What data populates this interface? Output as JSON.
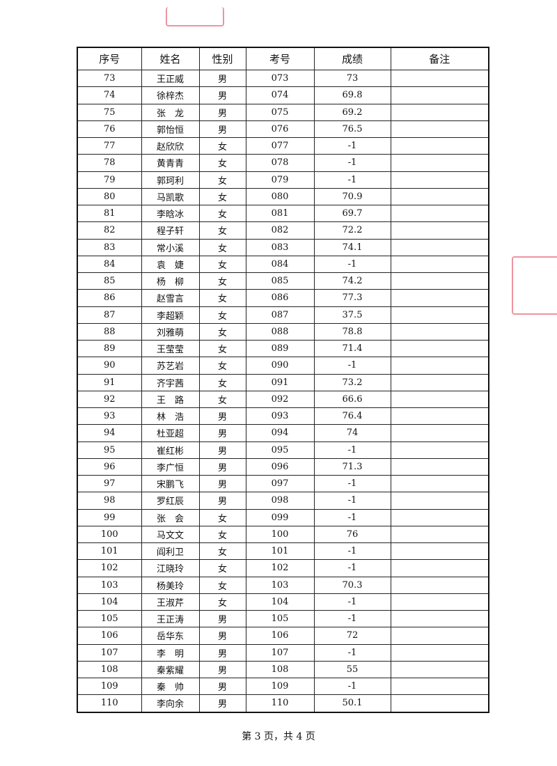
{
  "table": {
    "header": [
      "序号",
      "姓名",
      "性别",
      "考号",
      "成绩",
      "备注"
    ],
    "rows": [
      [
        "73",
        "王正威",
        "男",
        "073",
        "73"
      ],
      [
        "74",
        "徐梓杰",
        "男",
        "074",
        "69.8"
      ],
      [
        "75",
        "张　龙",
        "男",
        "075",
        "69.2"
      ],
      [
        "76",
        "郭怡恒",
        "男",
        "076",
        "76.5"
      ],
      [
        "77",
        "赵欣欣",
        "女",
        "077",
        "-1"
      ],
      [
        "78",
        "黄青青",
        "女",
        "078",
        "-1"
      ],
      [
        "79",
        "郭珂利",
        "女",
        "079",
        "-1"
      ],
      [
        "80",
        "马凯歌",
        "女",
        "080",
        "70.9"
      ],
      [
        "81",
        "李晗冰",
        "女",
        "081",
        "69.7"
      ],
      [
        "82",
        "程子轩",
        "女",
        "082",
        "72.2"
      ],
      [
        "83",
        "常小溪",
        "女",
        "083",
        "74.1"
      ],
      [
        "84",
        "袁　婕",
        "女",
        "084",
        "-1"
      ],
      [
        "85",
        "杨　柳",
        "女",
        "085",
        "74.2"
      ],
      [
        "86",
        "赵雪言",
        "女",
        "086",
        "77.3"
      ],
      [
        "87",
        "李超颖",
        "女",
        "087",
        "37.5"
      ],
      [
        "88",
        "刘雅萌",
        "女",
        "088",
        "78.8"
      ],
      [
        "89",
        "王莹莹",
        "女",
        "089",
        "71.4"
      ],
      [
        "90",
        "苏艺岩",
        "女",
        "090",
        "-1"
      ],
      [
        "91",
        "齐宇茜",
        "女",
        "091",
        "73.2"
      ],
      [
        "92",
        "王　路",
        "女",
        "092",
        "66.6"
      ],
      [
        "93",
        "林　浩",
        "男",
        "093",
        "76.4"
      ],
      [
        "94",
        "杜亚超",
        "男",
        "094",
        "74"
      ],
      [
        "95",
        "崔红彬",
        "男",
        "095",
        "-1"
      ],
      [
        "96",
        "李广恒",
        "男",
        "096",
        "71.3"
      ],
      [
        "97",
        "宋鹏飞",
        "男",
        "097",
        "-1"
      ],
      [
        "98",
        "罗红辰",
        "男",
        "098",
        "-1"
      ],
      [
        "99",
        "张　会",
        "女",
        "099",
        "-1"
      ],
      [
        "100",
        "马文文",
        "女",
        "100",
        "76"
      ],
      [
        "101",
        "阎利卫",
        "女",
        "101",
        "-1"
      ],
      [
        "102",
        "江晓玲",
        "女",
        "102",
        "-1"
      ],
      [
        "103",
        "杨美玲",
        "女",
        "103",
        "70.3"
      ],
      [
        "104",
        "王淑芹",
        "女",
        "104",
        "-1"
      ],
      [
        "105",
        "王正涛",
        "男",
        "105",
        "-1"
      ],
      [
        "106",
        "岳华东",
        "男",
        "106",
        "72"
      ],
      [
        "107",
        "李　明",
        "男",
        "107",
        "-1"
      ],
      [
        "108",
        "秦紫耀",
        "男",
        "108",
        "55"
      ],
      [
        "109",
        "秦　帅",
        "男",
        "109",
        "-1"
      ],
      [
        "110",
        "李向余",
        "男",
        "110",
        "50.1"
      ]
    ]
  },
  "footer": "第 3 页，共 4 页"
}
